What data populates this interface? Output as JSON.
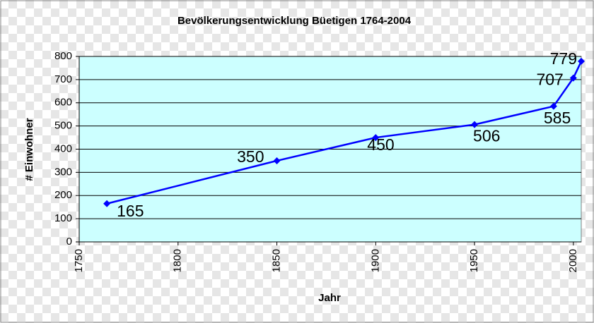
{
  "chart_data": {
    "type": "line",
    "title": "Bevölkerungsentwicklung Büetigen 1764-2004",
    "x_label": "Jahr",
    "y_label": "# Einwohner",
    "x": [
      1764,
      1850,
      1900,
      1950,
      1990,
      2000,
      2004
    ],
    "series": [
      {
        "name": "Einwohner",
        "color": "#0000ff",
        "values": [
          165,
          350,
          450,
          506,
          585,
          707,
          779
        ]
      }
    ],
    "xlim": [
      1750,
      2004
    ],
    "xticks": [
      1750,
      1800,
      1850,
      1900,
      1950,
      2000
    ],
    "ylim": [
      0,
      800
    ],
    "yticks": [
      0,
      100,
      200,
      300,
      400,
      500,
      600,
      700,
      800
    ],
    "grid": true,
    "plot_background": "#ccffff"
  }
}
